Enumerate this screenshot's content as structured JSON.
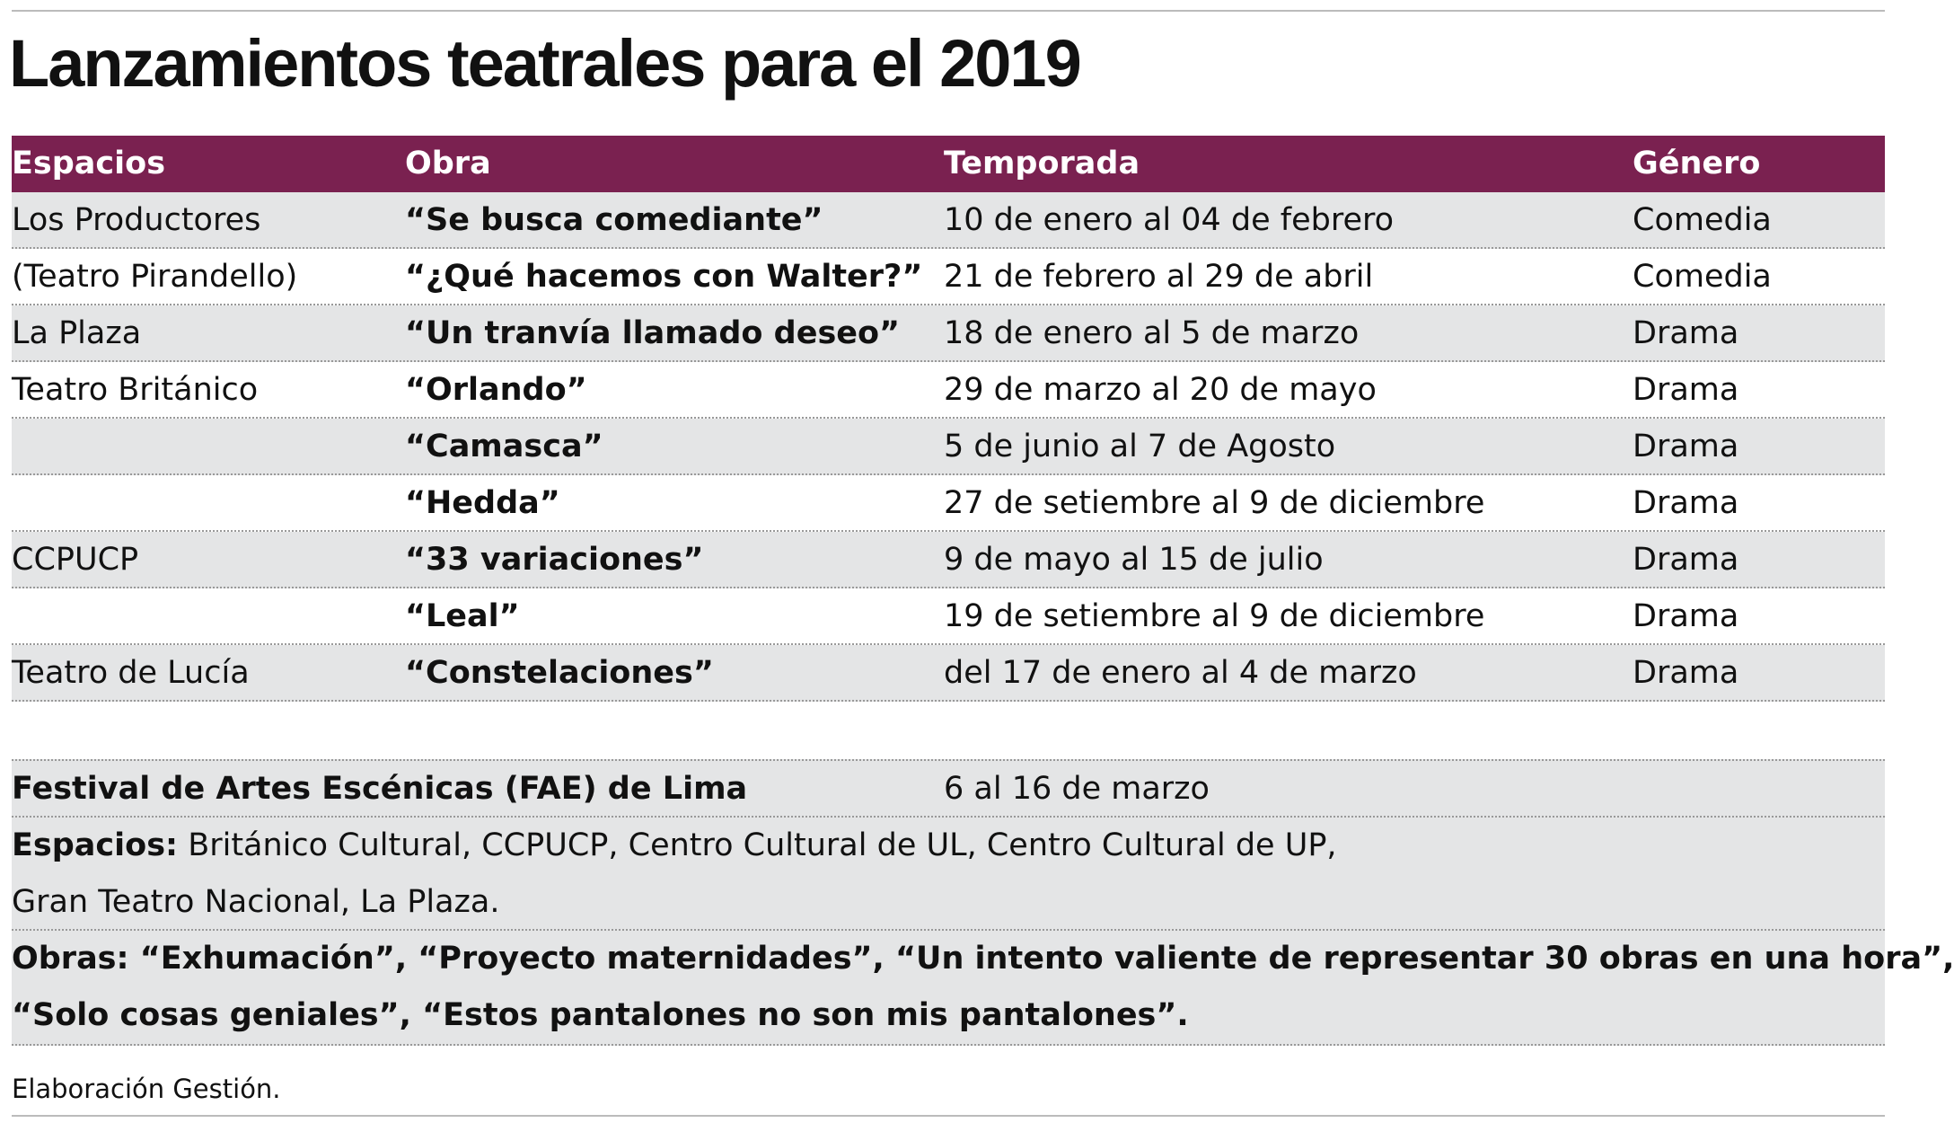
{
  "title": "Lanzamientos teatrales para el 2019",
  "table": {
    "header": [
      "Espacios",
      "Obra",
      "Temporada",
      "Género"
    ],
    "rows": [
      [
        "Los Productores",
        "“Se busca comediante”",
        "10 de enero al 04 de febrero",
        "Comedia"
      ],
      [
        "(Teatro Pirandello)",
        "“¿Qué hacemos con Walter?”",
        "21 de febrero al 29 de abril",
        "Comedia"
      ],
      [
        "La Plaza",
        "“Un tranvía llamado deseo”",
        "18 de enero al 5 de marzo",
        "Drama"
      ],
      [
        "Teatro Británico",
        "“Orlando”",
        "29 de marzo al 20 de mayo",
        "Drama"
      ],
      [
        null,
        "“Camasca”",
        "5 de junio al 7 de Agosto",
        "Drama"
      ],
      [
        null,
        "“Hedda”",
        "27 de setiembre al 9 de diciembre",
        "Drama"
      ],
      [
        "CCPUCP",
        "“33 variaciones”",
        "9 de mayo al 15 de julio",
        "Drama"
      ],
      [
        null,
        "“Leal”",
        "19 de setiembre al 9 de diciembre",
        "Drama"
      ],
      [
        "Teatro de Lucía",
        "“Constelaciones”",
        "del 17 de enero al 4 de marzo",
        "Drama"
      ]
    ]
  },
  "festival": {
    "name": "Festival de Artes Escénicas (FAE) de Lima",
    "dates": "6 al 16 de marzo",
    "espacios_label": "Espacios:",
    "espacios": [
      "Británico Cultural, CCPUCP, Centro Cultural de UL, Centro Cultural de UP,",
      "Gran Teatro Nacional, La Plaza."
    ],
    "obras_label": "Obras:",
    "obras": [
      "“Exhumación”, “Proyecto maternidades”, “Un intento valiente de representar 30 obras en una hora”,",
      "“Solo cosas geniales”, “Estos pantalones no son mis pantalones”."
    ]
  },
  "source": "Elaboración Gestión."
}
